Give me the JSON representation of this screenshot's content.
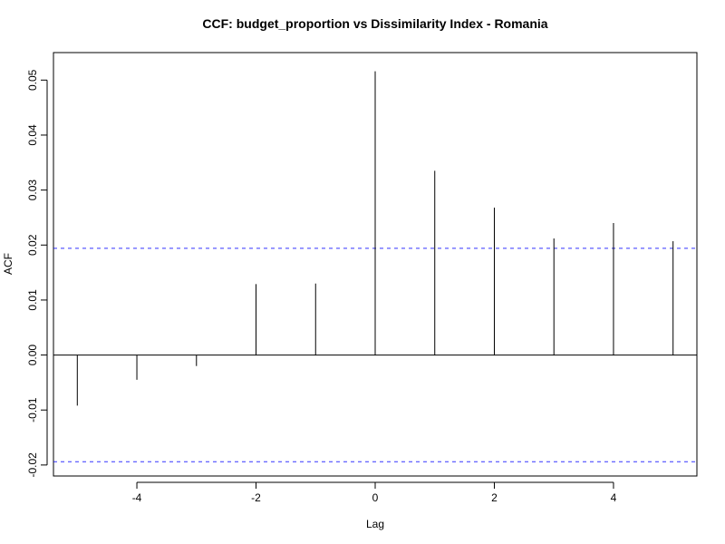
{
  "chart_data": {
    "type": "bar",
    "title": "CCF: budget_proportion vs Dissimilarity Index - Romania",
    "xlabel": "Lag",
    "ylabel": "ACF",
    "x": [
      -5,
      -4,
      -3,
      -2,
      -1,
      0,
      1,
      2,
      3,
      4,
      5
    ],
    "values": [
      -0.0092,
      -0.0045,
      -0.002,
      0.0129,
      0.013,
      0.0516,
      0.0335,
      0.0268,
      0.0212,
      0.024,
      0.0207
    ],
    "xlim": [
      -5.4,
      5.4
    ],
    "ylim": [
      -0.022,
      0.055
    ],
    "xticks": [
      "-4",
      "-2",
      "0",
      "2",
      "4"
    ],
    "yticks": [
      "-0.02",
      "-0.01",
      "0.00",
      "0.01",
      "0.02",
      "0.03",
      "0.04",
      "0.05"
    ],
    "confidence_bounds": [
      0.0194,
      -0.0194
    ],
    "confidence_color": "#0000ff",
    "grid": false,
    "legend": "none"
  }
}
